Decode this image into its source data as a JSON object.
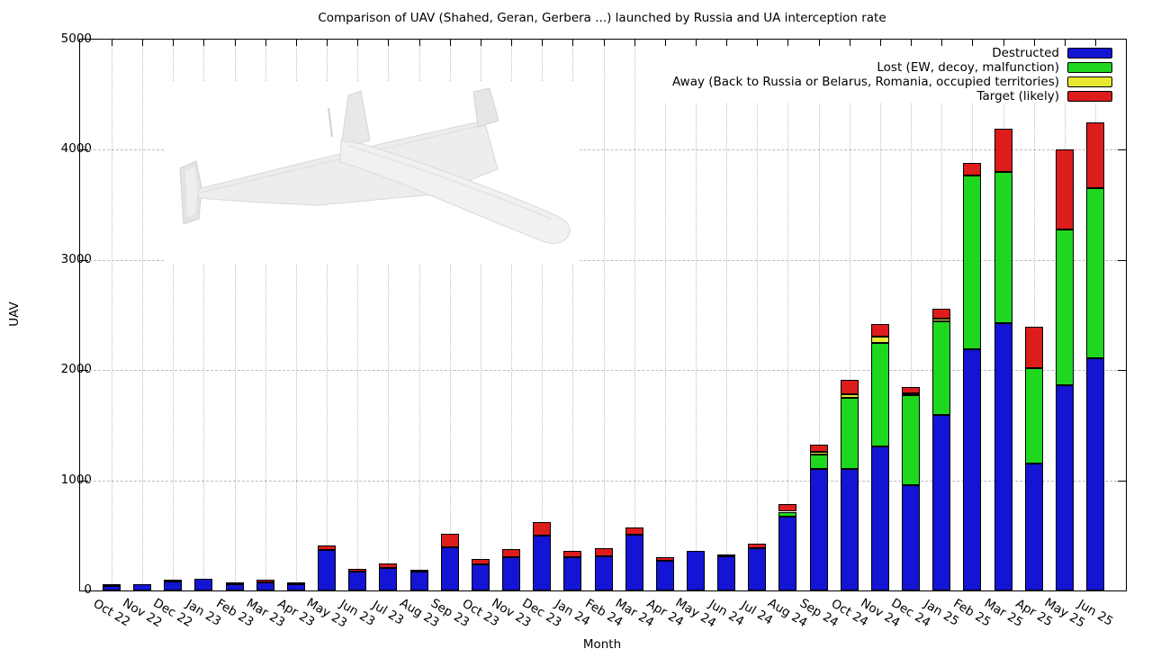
{
  "title": "Comparison of UAV (Shahed, Geran, Gerbera ...) launched by Russia and UA interception rate",
  "xlabel": "Month",
  "ylabel": "UAV",
  "colors": {
    "destructed": "#1414d4",
    "lost": "#1fd71f",
    "away": "#e8e832",
    "target": "#dd1c1c",
    "grid": "#bdbdbd",
    "axis": "#000000"
  },
  "legend": [
    {
      "key": "destructed",
      "label": "Destructed",
      "color": "#1414d4"
    },
    {
      "key": "lost",
      "label": "Lost (EW, decoy, malfunction)",
      "color": "#1fd71f"
    },
    {
      "key": "away",
      "label": "Away (Back to Russia or Belarus, Romania, occupied territories)",
      "color": "#e8e832"
    },
    {
      "key": "target",
      "label": "Target (likely)",
      "color": "#dd1c1c"
    }
  ],
  "drone_illustration": "shahed-136-style delta-wing UAV render, light gray",
  "chart_data": {
    "type": "bar",
    "stacked": true,
    "title": "Comparison of UAV (Shahed, Geran, Gerbera ...) launched by Russia and UA interception rate",
    "xlabel": "Month",
    "ylabel": "UAV",
    "ylim": [
      0,
      5000
    ],
    "yticks": [
      0,
      1000,
      2000,
      3000,
      4000,
      5000
    ],
    "grid": true,
    "legend_position": "top-right",
    "categories": [
      "Oct 22",
      "Nov 22",
      "Dec 22",
      "Jan 23",
      "Feb 23",
      "Mar 23",
      "Apr 23",
      "May 23",
      "Jun 23",
      "Jul 23",
      "Aug 23",
      "Sep 23",
      "Oct 23",
      "Nov 23",
      "Dec 23",
      "Jan 24",
      "Feb 24",
      "Mar 24",
      "Apr 24",
      "May 24",
      "Jun 24",
      "Jul 24",
      "Aug 24",
      "Sep 24",
      "Oct 24",
      "Nov 24",
      "Dec 24",
      "Jan 25",
      "Feb 25",
      "Mar 25",
      "Apr 25",
      "May 25",
      "Jun 25"
    ],
    "series": [
      {
        "name": "Destructed",
        "key": "destructed",
        "color": "#1414d4",
        "values": [
          45,
          55,
          85,
          110,
          55,
          75,
          55,
          370,
          170,
          205,
          170,
          395,
          240,
          305,
          500,
          300,
          310,
          505,
          270,
          360,
          310,
          385,
          670,
          1100,
          1100,
          1310,
          960,
          1590,
          2190,
          2430,
          1150,
          1860,
          2110
        ]
      },
      {
        "name": "Lost (EW, decoy, malfunction)",
        "key": "lost",
        "color": "#1fd71f",
        "values": [
          0,
          0,
          0,
          0,
          0,
          0,
          0,
          0,
          0,
          0,
          0,
          0,
          0,
          0,
          0,
          0,
          0,
          0,
          0,
          0,
          0,
          0,
          45,
          130,
          650,
          940,
          810,
          855,
          1580,
          1370,
          870,
          1420,
          1540
        ]
      },
      {
        "name": "Away (Back to Russia or Belarus, Romania, occupied territories)",
        "key": "away",
        "color": "#e8e832",
        "values": [
          0,
          0,
          0,
          0,
          0,
          0,
          0,
          0,
          0,
          0,
          0,
          0,
          0,
          0,
          0,
          0,
          0,
          0,
          0,
          0,
          0,
          0,
          0,
          30,
          30,
          55,
          20,
          20,
          0,
          0,
          0,
          0,
          0
        ]
      },
      {
        "name": "Target (likely)",
        "key": "target",
        "color": "#dd1c1c",
        "values": [
          10,
          0,
          15,
          0,
          5,
          20,
          5,
          40,
          30,
          40,
          5,
          120,
          45,
          70,
          120,
          60,
          75,
          70,
          30,
          0,
          20,
          40,
          70,
          60,
          130,
          110,
          55,
          95,
          110,
          390,
          370,
          720,
          600
        ]
      }
    ]
  }
}
